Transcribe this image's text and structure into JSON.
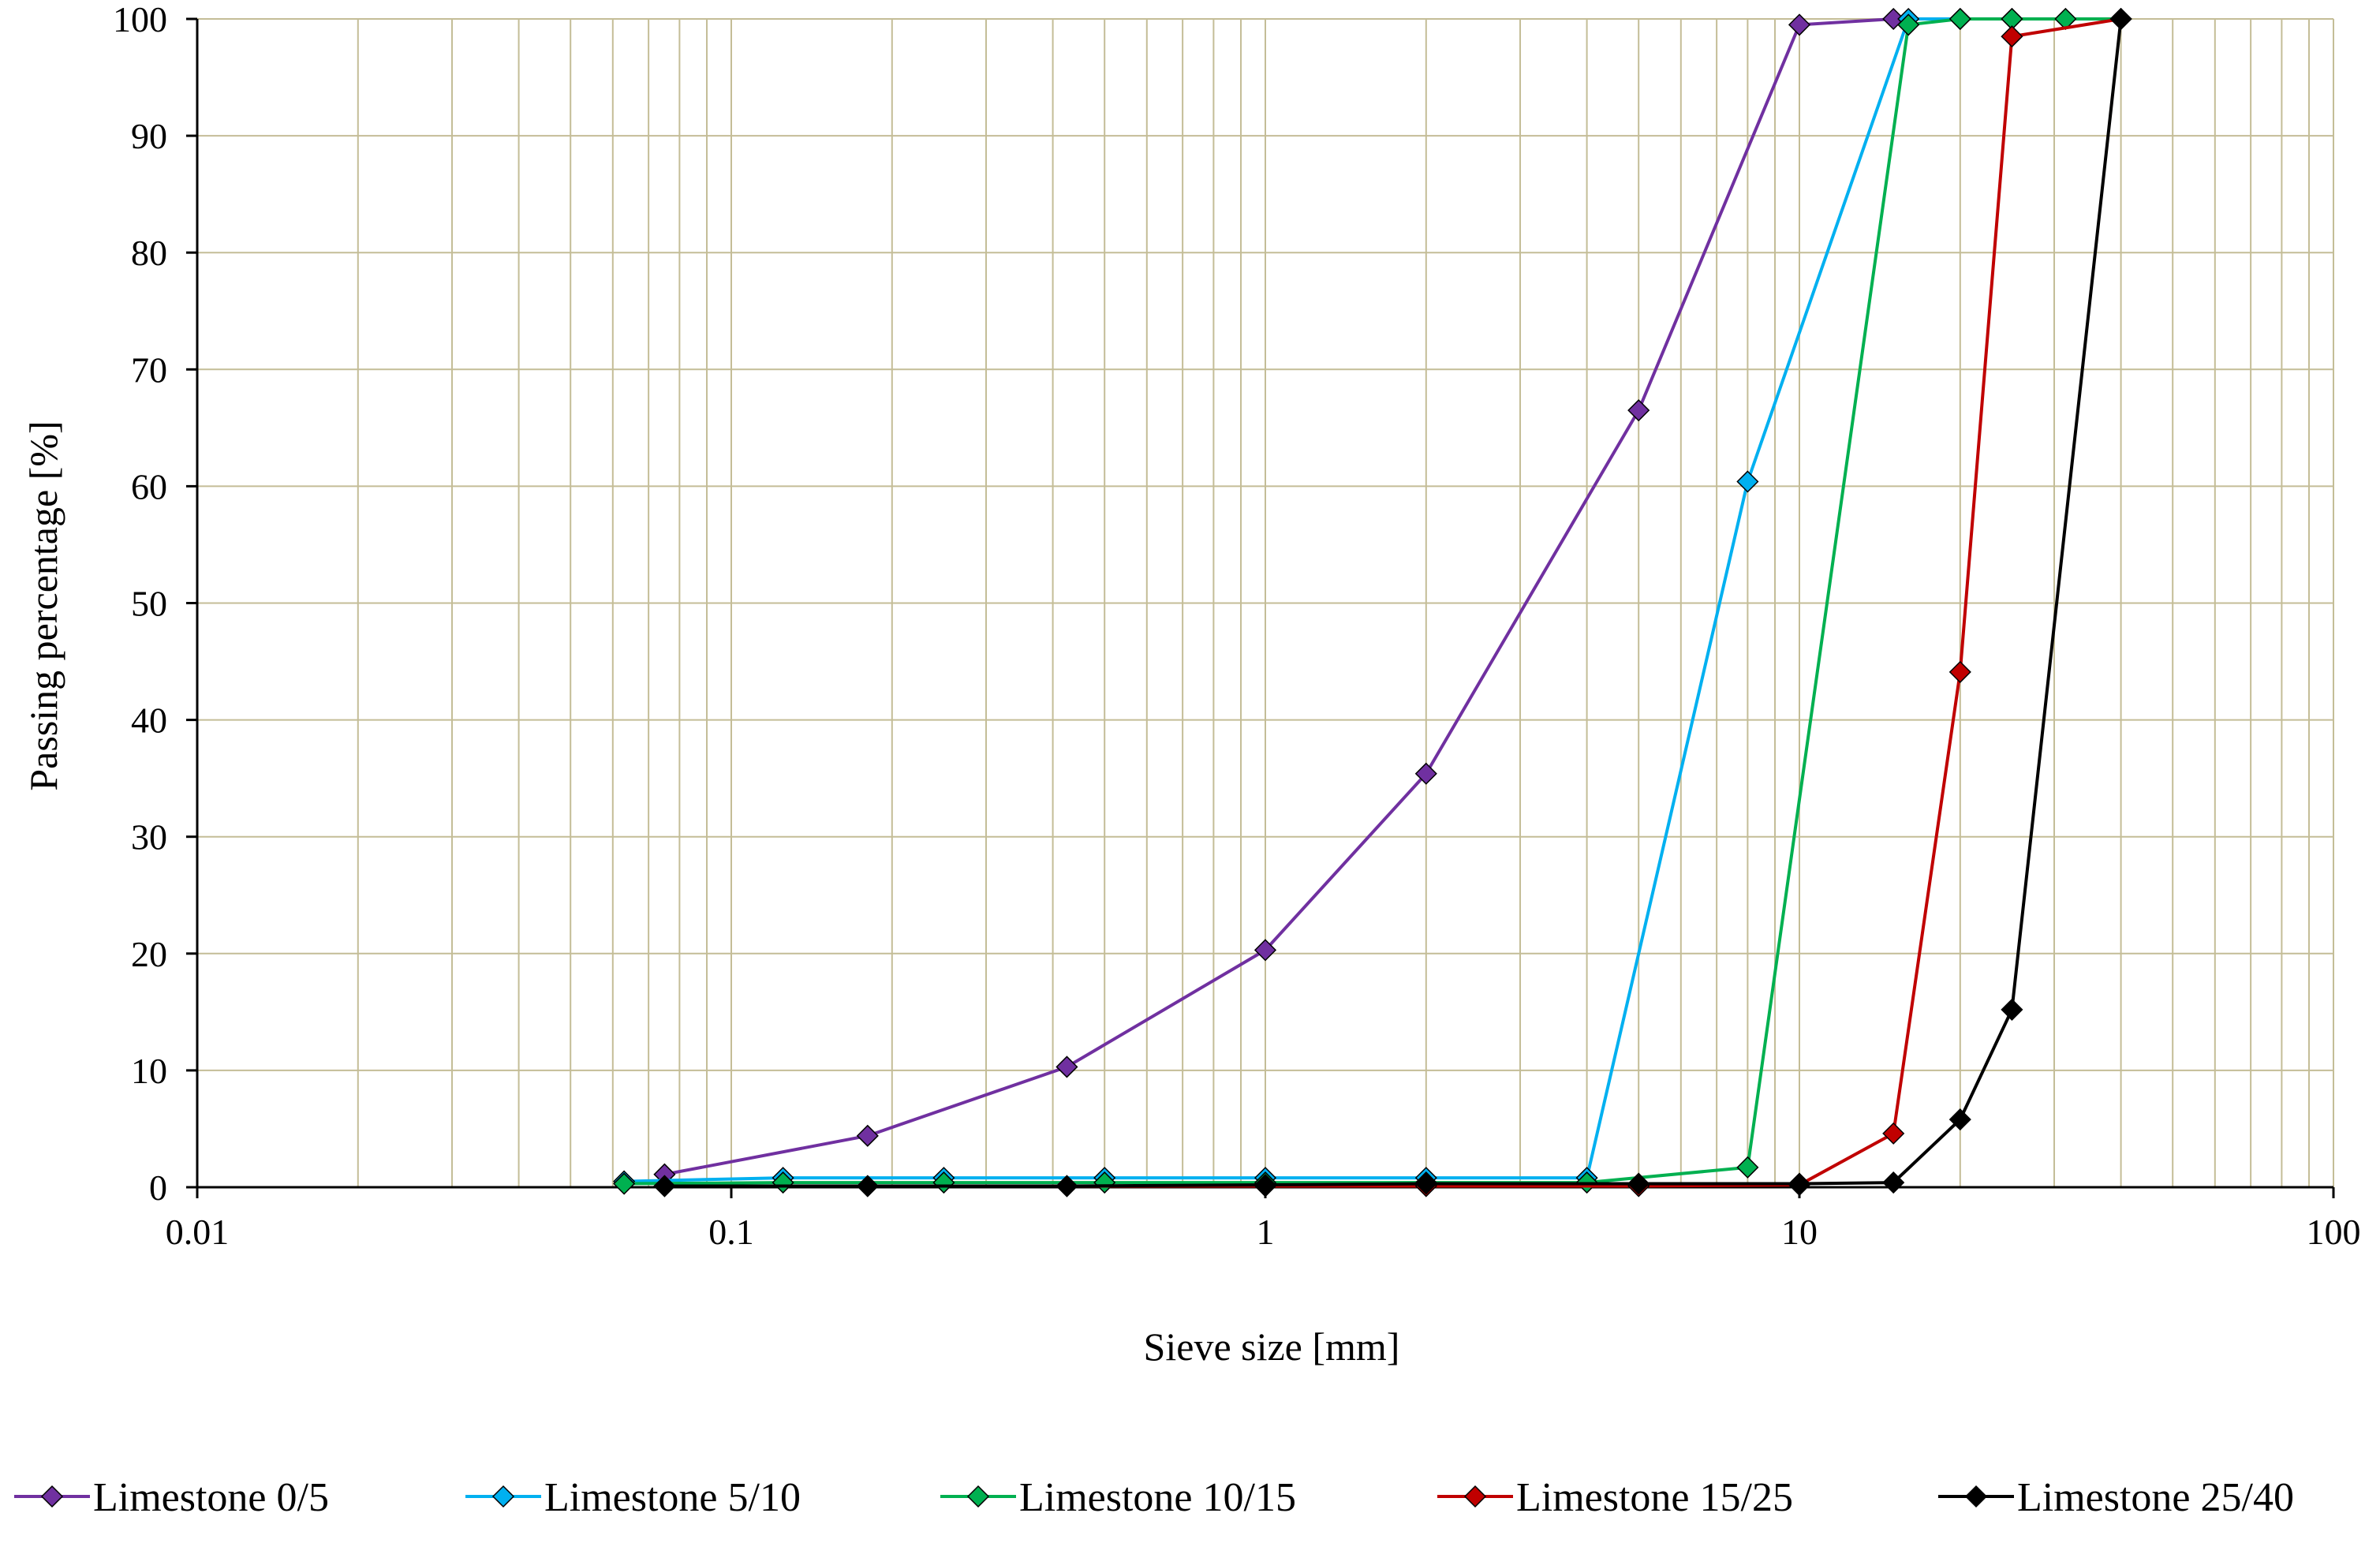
{
  "chart_data": {
    "type": "line",
    "title": "",
    "xlabel": "Sieve size [mm]",
    "ylabel": "Passing percentage [%]",
    "x_scale": "log",
    "xlim": [
      0.01,
      100
    ],
    "ylim": [
      0,
      100
    ],
    "x_ticks": [
      0.01,
      0.1,
      1,
      10,
      100
    ],
    "x_tick_labels": [
      "0.01",
      "0.1",
      "1",
      "10",
      "100"
    ],
    "y_ticks": [
      0,
      10,
      20,
      30,
      40,
      50,
      60,
      70,
      80,
      90,
      100
    ],
    "y_tick_labels": [
      "0",
      "10",
      "20",
      "30",
      "40",
      "50",
      "60",
      "70",
      "80",
      "90",
      "100"
    ],
    "grid": true,
    "grid_color": "#c4bd97",
    "legend_position": "bottom",
    "series": [
      {
        "name": "Limestone 0/5",
        "color": "#7030a0",
        "marker": "diamond",
        "points": [
          [
            0.075,
            1.1
          ],
          [
            0.18,
            4.4
          ],
          [
            0.425,
            10.3
          ],
          [
            1,
            20.3
          ],
          [
            2,
            35.4
          ],
          [
            5,
            66.5
          ],
          [
            10,
            99.5
          ],
          [
            15,
            100
          ],
          [
            20,
            100
          ],
          [
            25,
            100
          ],
          [
            40,
            100
          ]
        ]
      },
      {
        "name": "Limestone 5/10",
        "color": "#00b0f0",
        "marker": "diamond",
        "points": [
          [
            0.063,
            0.5
          ],
          [
            0.125,
            0.8
          ],
          [
            0.25,
            0.8
          ],
          [
            0.5,
            0.8
          ],
          [
            1,
            0.8
          ],
          [
            2,
            0.8
          ],
          [
            4,
            0.8
          ],
          [
            8,
            60.4
          ],
          [
            16,
            100
          ],
          [
            20,
            100
          ],
          [
            25,
            100
          ],
          [
            31.5,
            100
          ],
          [
            40,
            100
          ]
        ]
      },
      {
        "name": "Limestone 10/15",
        "color": "#00b050",
        "marker": "diamond",
        "points": [
          [
            0.063,
            0.3
          ],
          [
            0.125,
            0.4
          ],
          [
            0.25,
            0.4
          ],
          [
            0.5,
            0.4
          ],
          [
            1,
            0.4
          ],
          [
            2,
            0.4
          ],
          [
            4,
            0.4
          ],
          [
            8,
            1.7
          ],
          [
            16,
            99.5
          ],
          [
            20,
            100
          ],
          [
            25,
            100
          ],
          [
            31.5,
            100
          ],
          [
            40,
            100
          ]
        ]
      },
      {
        "name": "Limestone 15/25",
        "color": "#c00000",
        "marker": "diamond",
        "points": [
          [
            0.075,
            0.1
          ],
          [
            0.18,
            0.1
          ],
          [
            0.425,
            0.1
          ],
          [
            1,
            0.1
          ],
          [
            2,
            0.1
          ],
          [
            5,
            0.1
          ],
          [
            10,
            0.2
          ],
          [
            15,
            4.6
          ],
          [
            20,
            44.1
          ],
          [
            25,
            98.5
          ],
          [
            40,
            100
          ]
        ]
      },
      {
        "name": "Limestone 25/40",
        "color": "#000000",
        "marker": "diamond",
        "points": [
          [
            0.075,
            0.1
          ],
          [
            0.18,
            0.1
          ],
          [
            0.425,
            0.1
          ],
          [
            1,
            0.2
          ],
          [
            2,
            0.3
          ],
          [
            5,
            0.3
          ],
          [
            10,
            0.3
          ],
          [
            15,
            0.4
          ],
          [
            20,
            5.8
          ],
          [
            25,
            15.2
          ],
          [
            40,
            100
          ]
        ]
      }
    ]
  }
}
